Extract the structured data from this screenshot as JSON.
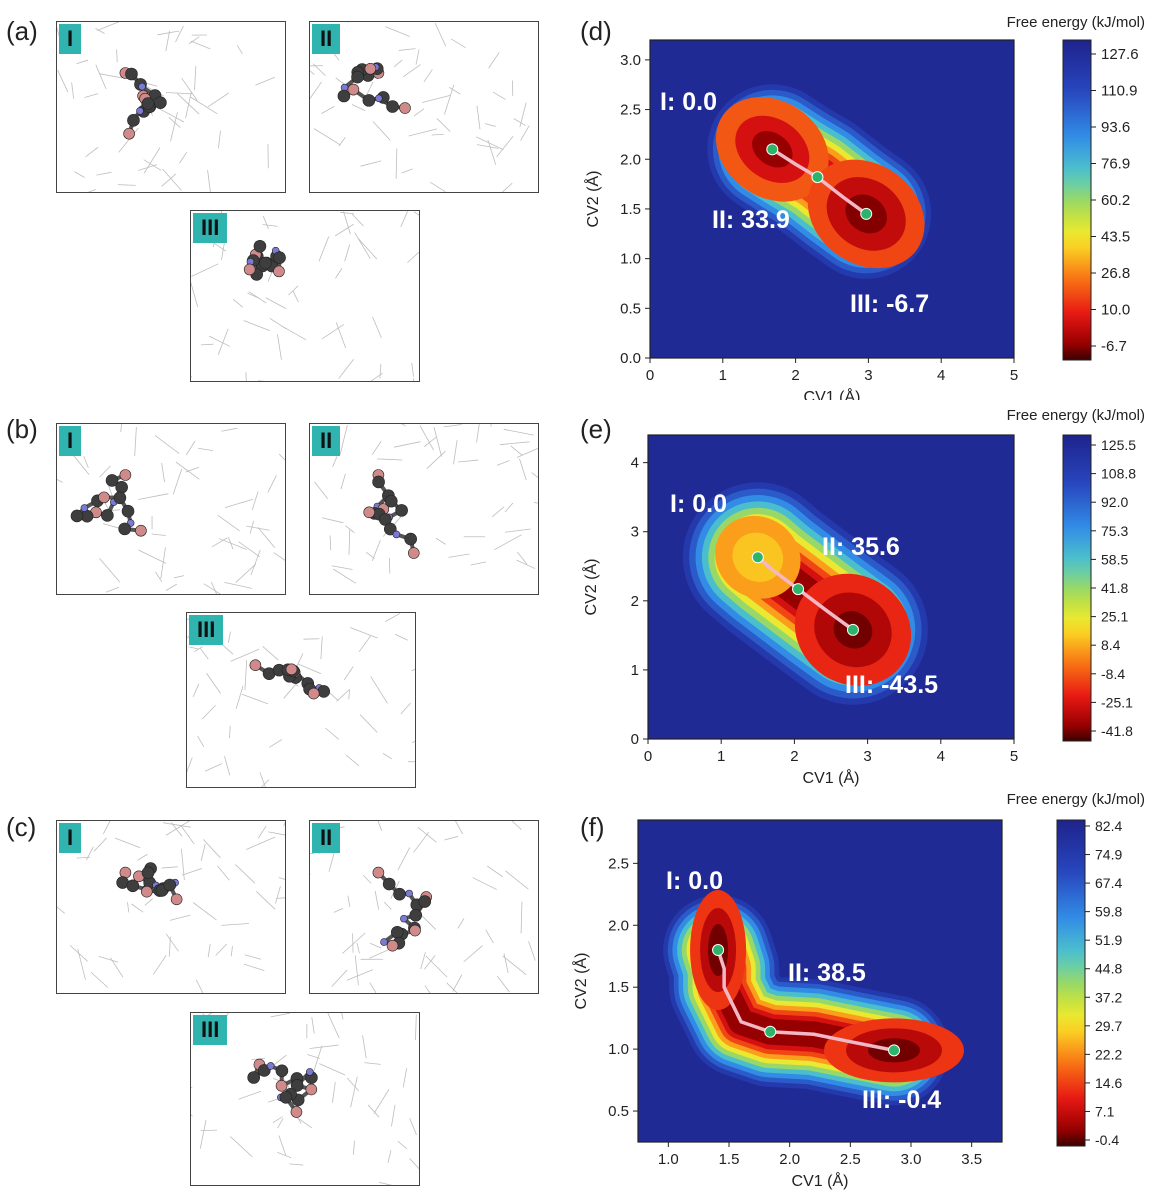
{
  "panel_letters": [
    "(a)",
    "(b)",
    "(c)",
    "(d)",
    "(e)",
    "(f)"
  ],
  "molecular_panels": [
    {
      "letter": "(a)",
      "boxes": [
        "I",
        "II",
        "III"
      ]
    },
    {
      "letter": "(b)",
      "boxes": [
        "I",
        "II",
        "III"
      ]
    },
    {
      "letter": "(c)",
      "boxes": [
        "I",
        "II",
        "III"
      ]
    }
  ],
  "colors": {
    "roman_badge": "#2fb4b0",
    "path": "#f2b8c6",
    "marker": "#2db36a",
    "bg_min": "#1d2a8f"
  },
  "chart_data": [
    {
      "type": "heatmap",
      "panel": "(d)",
      "xlabel": "CV1 (Å)",
      "ylabel": "CV2 (Å)",
      "xlim": [
        0,
        5
      ],
      "ylim": [
        0,
        3.2
      ],
      "xticks": [
        "0",
        "1",
        "2",
        "3",
        "4",
        "5"
      ],
      "yticks": [
        "0.0",
        "0.5",
        "1.0",
        "1.5",
        "2.0",
        "2.5",
        "3.0"
      ],
      "colorbar_title": "Free energy (kJ/mol)",
      "colorbar_ticks": [
        "127.6",
        "110.9",
        "93.6",
        "76.9",
        "60.2",
        "43.5",
        "26.8",
        "10.0",
        "-6.7"
      ],
      "state_labels": [
        "I: 0.0",
        "II: 33.9",
        "III: -6.7"
      ],
      "states": [
        {
          "name": "I",
          "x": 1.68,
          "y": 2.1,
          "energy": 0.0
        },
        {
          "name": "II",
          "x": 2.3,
          "y": 1.82,
          "energy": 33.9
        },
        {
          "name": "III",
          "x": 2.97,
          "y": 1.45,
          "energy": -6.7
        }
      ],
      "path": [
        [
          1.68,
          2.1
        ],
        [
          2.0,
          1.95
        ],
        [
          2.3,
          1.82
        ],
        [
          2.65,
          1.62
        ],
        [
          2.97,
          1.45
        ]
      ]
    },
    {
      "type": "heatmap",
      "panel": "(e)",
      "xlabel": "CV1 (Å)",
      "ylabel": "CV2 (Å)",
      "xlim": [
        0,
        5
      ],
      "ylim": [
        0,
        4.4
      ],
      "xticks": [
        "0",
        "1",
        "2",
        "3",
        "4",
        "5"
      ],
      "yticks": [
        "0",
        "1",
        "2",
        "3",
        "4"
      ],
      "colorbar_title": "Free energy  (kJ/mol)",
      "colorbar_ticks": [
        "125.5",
        "108.8",
        "92.0",
        "75.3",
        "58.5",
        "41.8",
        "25.1",
        "8.4",
        "-8.4",
        "-25.1",
        "-41.8"
      ],
      "state_labels": [
        "I: 0.0",
        "II: 35.6",
        "III: -43.5"
      ],
      "states": [
        {
          "name": "I",
          "x": 1.5,
          "y": 2.63,
          "energy": 0.0
        },
        {
          "name": "II",
          "x": 2.05,
          "y": 2.17,
          "energy": 35.6
        },
        {
          "name": "III",
          "x": 2.8,
          "y": 1.58,
          "energy": -43.5
        }
      ],
      "path": [
        [
          1.5,
          2.63
        ],
        [
          1.7,
          2.45
        ],
        [
          2.05,
          2.17
        ],
        [
          2.45,
          1.85
        ],
        [
          2.8,
          1.58
        ]
      ]
    },
    {
      "type": "heatmap",
      "panel": "(f)",
      "xlabel": "CV1 (Å)",
      "ylabel": "CV2 (Å)",
      "xlim": [
        0.75,
        3.75
      ],
      "ylim": [
        0.25,
        2.85
      ],
      "xticks": [
        "1.0",
        "1.5",
        "2.0",
        "2.5",
        "3.0",
        "3.5"
      ],
      "yticks": [
        "0.5",
        "1.0",
        "1.5",
        "2.0",
        "2.5"
      ],
      "colorbar_title": "Free energy  (kJ/mol)",
      "colorbar_ticks": [
        "82.4",
        "74.9",
        "67.4",
        "59.8",
        "51.9",
        "44.8",
        "37.2",
        "29.7",
        "22.2",
        "14.6",
        "7.1",
        "-0.4"
      ],
      "state_labels": [
        "I: 0.0",
        "II: 38.5",
        "III: -0.4"
      ],
      "states": [
        {
          "name": "I",
          "x": 1.41,
          "y": 1.8,
          "energy": 0.0
        },
        {
          "name": "II",
          "x": 1.84,
          "y": 1.14,
          "energy": 38.5
        },
        {
          "name": "III",
          "x": 2.86,
          "y": 0.99,
          "energy": -0.4
        }
      ],
      "path": [
        [
          1.41,
          1.8
        ],
        [
          1.46,
          1.65
        ],
        [
          1.46,
          1.5
        ],
        [
          1.52,
          1.38
        ],
        [
          1.6,
          1.22
        ],
        [
          1.84,
          1.14
        ],
        [
          2.2,
          1.12
        ],
        [
          2.5,
          1.06
        ],
        [
          2.86,
          0.99
        ]
      ]
    }
  ]
}
